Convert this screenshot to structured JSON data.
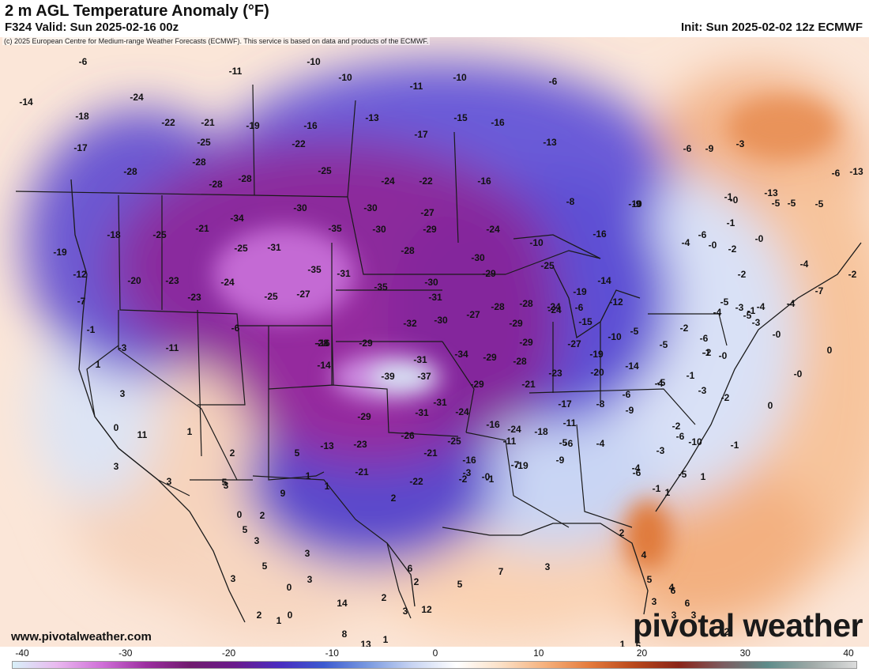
{
  "header": {
    "title": "2 m AGL Temperature Anomaly (°F)",
    "valid": "F324 Valid: Sun 2025-02-16 00z",
    "init": "Init: Sun 2025-02-02 12z ECMWF",
    "credit": "(c) 2025 European Centre for Medium-range Weather Forecasts (ECMWF). This service is based on data and products of the ECMWF."
  },
  "footer": {
    "website": "www.pivotalweather.com",
    "logo": "pivotal weather"
  },
  "colorbar": {
    "ticks": [
      "-40",
      "-30",
      "-20",
      "-10",
      "0",
      "10",
      "20",
      "30",
      "40"
    ],
    "stops": [
      "#d8f0f8",
      "#e9b8ef",
      "#d070d8",
      "#9c2fa0",
      "#701c6e",
      "#6a1a8c",
      "#4a2cc0",
      "#3c5ad0",
      "#7a9ae0",
      "#c8d4f2",
      "#ffffff",
      "#fbe0c6",
      "#f5b07c",
      "#e47a3c",
      "#b8481c",
      "#8a2418",
      "#7c5c60",
      "#5e8c8a",
      "#a0aaa8",
      "#dcdcdc"
    ]
  },
  "anomalies": [
    "-6",
    "-10",
    "-10",
    "-10",
    "-11",
    "-14",
    "-24",
    "-22",
    "-21",
    "-19",
    "-16",
    "-11",
    "-15",
    "-16",
    "-18",
    "-17",
    "-25",
    "-22",
    "-13",
    "-17",
    "-13",
    "-6",
    "-28",
    "-28",
    "-28",
    "-25",
    "-24",
    "-22",
    "-16",
    "-28",
    "-34",
    "-30",
    "-30",
    "-27",
    "-10",
    "-8",
    "-9",
    "-18",
    "-25",
    "-21",
    "-35",
    "-30",
    "-29",
    "-24",
    "-16",
    "-10",
    "-19",
    "-31",
    "-25",
    "-28",
    "-30",
    "-25",
    "-12",
    "-20",
    "-23",
    "-24",
    "-35",
    "-31",
    "-35",
    "-30",
    "-29",
    "-19",
    "-14",
    "-7",
    "-23",
    "-25",
    "-27",
    "-31",
    "-28",
    "-28",
    "-24",
    "-12",
    "-6",
    "-32",
    "-30",
    "-27",
    "-29",
    "-24",
    "-15",
    "-10",
    "-5",
    "-3",
    "-11",
    "-6",
    "-16",
    "-29",
    "-28",
    "-29",
    "-27",
    "-19",
    "-14",
    "-31",
    "-34",
    "-29",
    "-28",
    "-23",
    "-20",
    "-14",
    "-5",
    "-2",
    "-39",
    "-37",
    "-29",
    "-21",
    "-17",
    "-8",
    "-4",
    "-29",
    "-31",
    "-31",
    "-24",
    "-16",
    "-18",
    "-11",
    "-13",
    "-23",
    "-26",
    "-21",
    "-25",
    "-24",
    "-21",
    "-16",
    "-22",
    "-11",
    "-19",
    "-9",
    "-4",
    "-3",
    "-6",
    "-10",
    "-6",
    "-9",
    "-3",
    "-2",
    "-1",
    "-0",
    "-7",
    "-6",
    "-5",
    "-4",
    "-6",
    "-1",
    "-5",
    "-2",
    "-3",
    "-2",
    "-5",
    "-1",
    "-1",
    "-0",
    "-2",
    "-6",
    "-4",
    "-5",
    "-3",
    "-4",
    "-0",
    "-4",
    "-7",
    "-2",
    "-3",
    "-5",
    "-2",
    "-1",
    "-0",
    "-5",
    "-5",
    "-4",
    "-4",
    "-6",
    "-2",
    "-1",
    "-0",
    "-6",
    "-9",
    "-3",
    "-5",
    "-0",
    "-1",
    "-13",
    "-6",
    "-13",
    "-1",
    "1",
    "3",
    "0",
    "3",
    "11",
    "1",
    "3",
    "5",
    "2",
    "5",
    "1",
    "1",
    "2",
    "3",
    "0",
    "2",
    "9",
    "5",
    "3",
    "5",
    "3",
    "2",
    "1",
    "0",
    "0",
    "3",
    "3",
    "14",
    "8",
    "13",
    "2",
    "1",
    "3",
    "6",
    "2",
    "12",
    "5",
    "7",
    "3",
    "2",
    "4",
    "5",
    "3",
    "6",
    "3",
    "2",
    "1",
    "5",
    "4",
    "6",
    "3",
    "1",
    "1",
    "-1",
    "0",
    "-0",
    "0"
  ]
}
